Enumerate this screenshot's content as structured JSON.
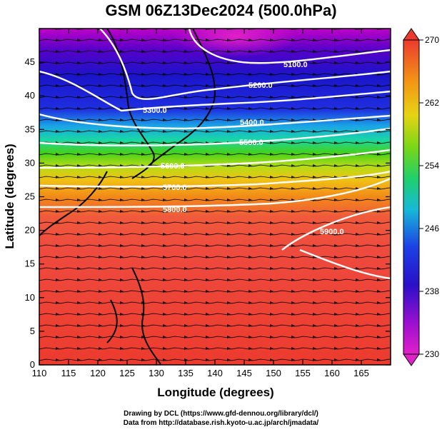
{
  "title": "GSM 06Z13Dec2024 (500.0hPa)",
  "xaxis_label": "Longitude (degrees)",
  "yaxis_label": "Latitude (degrees)",
  "x_ticks": [
    "110",
    "115",
    "120",
    "125",
    "130",
    "135",
    "140",
    "145",
    "150",
    "155",
    "160",
    "165"
  ],
  "y_ticks": [
    "0",
    "5",
    "10",
    "15",
    "20",
    "25",
    "30",
    "35",
    "40",
    "45"
  ],
  "colorbar_ticks": [
    "230",
    "238",
    "246",
    "254",
    "262",
    "270"
  ],
  "contour_labels": [
    "5100.0",
    "5200.0",
    "5300.0",
    "5400.0",
    "5500.0",
    "5600.0",
    "5700.0",
    "5800.0",
    "5900.0",
    "5800.0"
  ],
  "credits": {
    "drawing": "Drawing by DCL (https://www.gfd-dennou.org/library/dcl/)",
    "data": "Data from http://database.rish.kyoto-u.ac.jp/arch/jmadata/"
  },
  "colors": {
    "contour": "#ffffff",
    "land_outline": "#000000",
    "streamline": "#000000"
  },
  "chart_data": {
    "type": "heatmap",
    "xlim": [
      110,
      170
    ],
    "ylim": [
      0,
      50
    ],
    "colorbar_range": [
      230,
      270
    ],
    "colorbar_unit": "",
    "contour_field_levels": [
      5100,
      5200,
      5300,
      5400,
      5500,
      5600,
      5700,
      5800,
      5900
    ]
  }
}
